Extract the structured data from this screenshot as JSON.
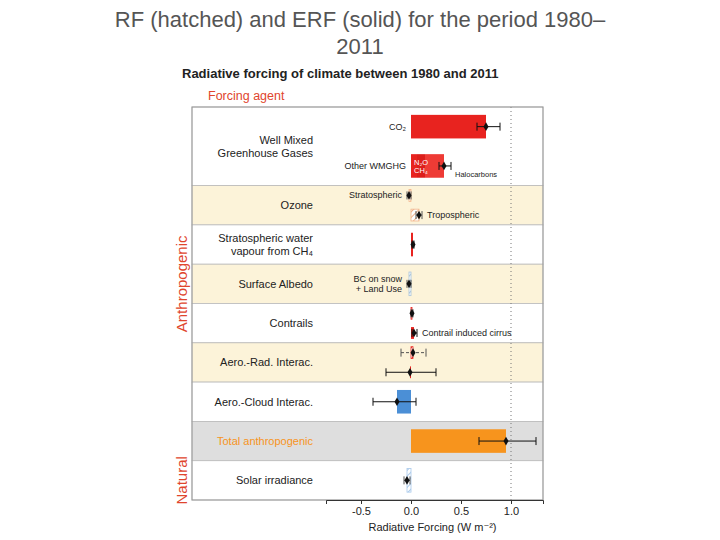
{
  "page": {
    "title": [
      "RF (hatched) and ERF (solid) for the period 1980–",
      "2011"
    ]
  },
  "chart_data": {
    "type": "bar",
    "orientation": "horizontal",
    "title": "Radiative forcing of climate between 1980 and 2011",
    "category_title": "Forcing agent",
    "x_label": "Radiative Forcing (W m⁻²)",
    "xlim": [
      -0.85,
      1.32
    ],
    "xticks": [
      -0.5,
      {
        "value": 0,
        "label": "0.0"
      },
      0.5,
      {
        "value": 1,
        "label": "1.0"
      }
    ],
    "reference_line": 1,
    "sections": [
      {
        "label": "Anthropogenic",
        "rows": [
          {
            "label": [
              "Well Mixed",
              "Greenhouse Gases"
            ],
            "items": [
              {
                "label": "CO₂",
                "forcing": "ERF",
                "value": 0.75,
                "error": [
                  0.66,
                  0.89
                ],
                "color": "#e8231f"
              },
              {
                "label": "Other WMGHG",
                "forcing": "ERF",
                "value": 0.33,
                "error": [
                  0.28,
                  0.4
                ],
                "color": "#e8231f",
                "segments": [
                  {
                    "label": "N₂O",
                    "value": 0.06,
                    "color": "#e8231f"
                  },
                  {
                    "label": "CH₄",
                    "value": 0.08,
                    "color": "#dc1f1b"
                  },
                  {
                    "label": "Halocarbons",
                    "value": 0.19,
                    "color": "#ee3b35"
                  }
                ]
              }
            ]
          },
          {
            "label": [
              "Ozone"
            ],
            "items": [
              {
                "label": "Stratospheric",
                "forcing": "RF",
                "value": -0.02,
                "error": [
                  -0.04,
                  0.0
                ],
                "color": "#f2b48a"
              },
              {
                "label": "Tropospheric",
                "forcing": "RF",
                "value": 0.08,
                "error": [
                  0.05,
                  0.11
                ],
                "color": "#f2b48a"
              }
            ]
          },
          {
            "label": [
              "Stratospheric water",
              "vapour from CH₄"
            ],
            "items": [
              {
                "forcing": "ERF",
                "value": 0.02,
                "error": [
                  0.01,
                  0.03
                ],
                "color": "#e8231f"
              }
            ]
          },
          {
            "label": [
              "Surface Albedo"
            ],
            "items": [
              {
                "label": [
                  "BC on snow",
                  "+ Land Use"
                ],
                "forcing": "RF",
                "value": -0.02,
                "error": [
                  -0.04,
                  0.0
                ],
                "color": "#a9c3da"
              }
            ]
          },
          {
            "label": [
              "Contrails"
            ],
            "items": [
              {
                "forcing": "RF",
                "value": 0.01,
                "error": [
                  0.0,
                  0.02
                ],
                "color": "#e8231f"
              },
              {
                "label": "Contrail induced cirrus",
                "forcing": "ERF",
                "value": 0.03,
                "error": [
                  0.01,
                  0.06
                ],
                "color": "#e8231f"
              }
            ]
          },
          {
            "label": [
              "Aero.-Rad. Interac."
            ],
            "items": [
              {
                "forcing": "RF",
                "value": 0.02,
                "error": [
                  -0.1,
                  0.15
                ],
                "color": "#e8231f"
              },
              {
                "forcing": "ERF",
                "value": -0.01,
                "error": [
                  -0.25,
                  0.25
                ],
                "color": "#e8231f"
              }
            ]
          },
          {
            "label": [
              "Aero.-Cloud Interac."
            ],
            "items": [
              {
                "forcing": "ERF",
                "value": -0.14,
                "error": [
                  -0.38,
                  0.05
                ],
                "color": "#4b8fd6"
              }
            ]
          },
          {
            "label": [
              "Total anthropogenic"
            ],
            "items": [
              {
                "forcing": "ERF",
                "value": 0.95,
                "error": [
                  0.68,
                  1.25
                ],
                "color": "#f7941d"
              }
            ]
          }
        ]
      },
      {
        "label": "Natural",
        "rows": [
          {
            "label": [
              "Solar irradiance"
            ],
            "items": [
              {
                "forcing": "RF",
                "value": -0.04,
                "error": [
                  -0.07,
                  -0.01
                ],
                "color": "#a9c9ea"
              }
            ]
          }
        ]
      }
    ]
  }
}
